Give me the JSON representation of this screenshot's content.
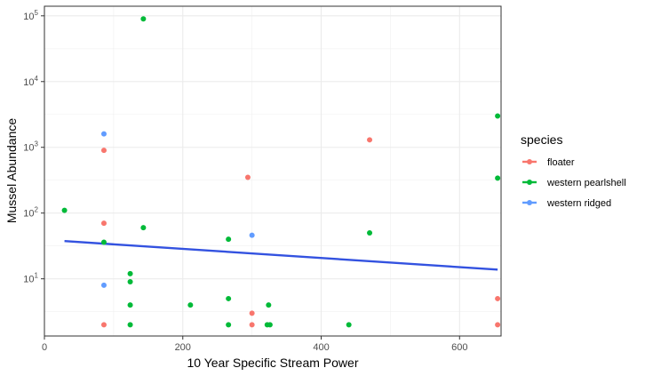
{
  "chart_data": {
    "type": "scatter",
    "title": "",
    "xlabel": "10 Year Specific Stream Power",
    "ylabel": "Mussel Abundance",
    "xlim": [
      0,
      660
    ],
    "ylim": [
      1.35,
      140000
    ],
    "yscale": "log10",
    "x_ticks": [
      0,
      200,
      400,
      600
    ],
    "x_tick_labels": [
      "0",
      "200",
      "400",
      "600"
    ],
    "y_ticks": [
      10,
      100,
      1000,
      10000,
      100000
    ],
    "y_tick_labels": [
      {
        "base": "10",
        "exp": "1"
      },
      {
        "base": "10",
        "exp": "2"
      },
      {
        "base": "10",
        "exp": "3"
      },
      {
        "base": "10",
        "exp": "4"
      },
      {
        "base": "10",
        "exp": "5"
      }
    ],
    "legend_title": "species",
    "legend_position": "right",
    "grid": true,
    "series": [
      {
        "name": "floater",
        "color": "#F8766D",
        "points": [
          {
            "x": 86,
            "y": 900
          },
          {
            "x": 86,
            "y": 70
          },
          {
            "x": 86,
            "y": 2
          },
          {
            "x": 294,
            "y": 350
          },
          {
            "x": 300,
            "y": 3
          },
          {
            "x": 300,
            "y": 2
          },
          {
            "x": 470,
            "y": 1300
          },
          {
            "x": 655,
            "y": 5
          },
          {
            "x": 655,
            "y": 2
          }
        ]
      },
      {
        "name": "western pearlshell",
        "color": "#00BA38",
        "points": [
          {
            "x": 143,
            "y": 90000
          },
          {
            "x": 29,
            "y": 110
          },
          {
            "x": 86,
            "y": 36
          },
          {
            "x": 124,
            "y": 12
          },
          {
            "x": 124,
            "y": 9
          },
          {
            "x": 124,
            "y": 4
          },
          {
            "x": 124,
            "y": 2
          },
          {
            "x": 143,
            "y": 60
          },
          {
            "x": 211,
            "y": 4
          },
          {
            "x": 266,
            "y": 40
          },
          {
            "x": 266,
            "y": 5
          },
          {
            "x": 266,
            "y": 2
          },
          {
            "x": 324,
            "y": 4
          },
          {
            "x": 322,
            "y": 2
          },
          {
            "x": 326,
            "y": 2
          },
          {
            "x": 440,
            "y": 2
          },
          {
            "x": 470,
            "y": 50
          },
          {
            "x": 655,
            "y": 3000
          },
          {
            "x": 655,
            "y": 340
          }
        ]
      },
      {
        "name": "western ridged",
        "color": "#619CFF",
        "points": [
          {
            "x": 86,
            "y": 1600
          },
          {
            "x": 86,
            "y": 8
          },
          {
            "x": 300,
            "y": 46
          }
        ]
      }
    ],
    "trend_line": {
      "name": "fit",
      "color": "#3352E0",
      "points": [
        {
          "x": 29,
          "y": 37.5
        },
        {
          "x": 655,
          "y": 13.8
        }
      ]
    }
  }
}
